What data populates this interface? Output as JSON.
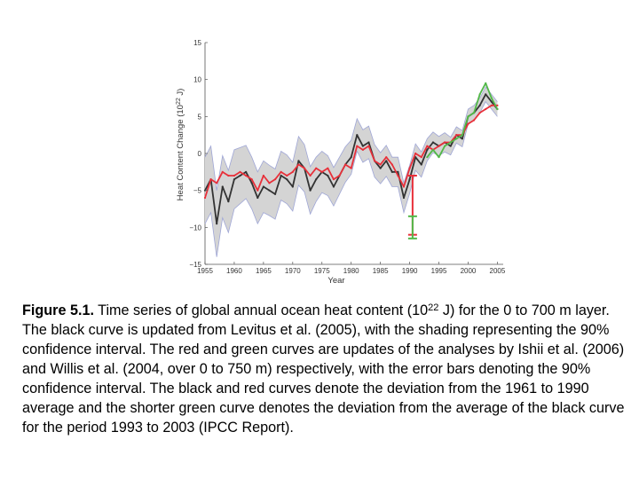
{
  "caption": {
    "figure_label": "Figure 5.1.",
    "text_before_exp": " Time series of global annual ocean heat content (10",
    "exponent": "22",
    "text_after_exp": " J) for the 0 to 700 m layer. The black curve is updated from Levitus et al. (2005), with the shading representing the 90% confidence interval. The red and green curves are updates of the analyses by Ishii et al. (2006) and Willis et al. (2004, over 0 to 750 m) respectively, with the error bars denoting the 90% confidence interval. The black and red curves denote the deviation from the 1961 to 1990 average and the shorter green curve denotes the deviation from the average of the black curve for the period 1993 to 2003 (IPCC Report)."
  },
  "chart_data": {
    "type": "line",
    "xlabel": "Year",
    "ylabel_prefix": "Heat Content Change (10",
    "ylabel_exp": "22",
    "ylabel_suffix": " J)",
    "xlim": [
      1955,
      2006
    ],
    "ylim": [
      -15,
      15
    ],
    "xticks": [
      1955,
      1960,
      1965,
      1970,
      1975,
      1980,
      1985,
      1990,
      1995,
      2000,
      2005
    ],
    "yticks": [
      -15,
      -10,
      -5,
      0,
      5,
      10,
      15
    ],
    "grid": false,
    "colors": {
      "black": "#333333",
      "red": "#e8303a",
      "green": "#52b848",
      "shade": "#d4d4d4",
      "shade_edge": "#9fa6d6"
    },
    "series": [
      {
        "color": "black",
        "x": [
          1955,
          1956,
          1957,
          1958,
          1959,
          1960,
          1961,
          1962,
          1963,
          1964,
          1965,
          1966,
          1967,
          1968,
          1969,
          1970,
          1971,
          1972,
          1973,
          1974,
          1975,
          1976,
          1977,
          1978,
          1979,
          1980,
          1981,
          1982,
          1983,
          1984,
          1985,
          1986,
          1987,
          1988,
          1989,
          1990,
          1991,
          1992,
          1993,
          1994,
          1995,
          1996,
          1997,
          1998,
          1999,
          2000,
          2001,
          2002,
          2003,
          2004,
          2005
        ],
        "y": [
          -5.0,
          -3.5,
          -9.5,
          -4.5,
          -6.5,
          -3.5,
          -3.0,
          -2.5,
          -4.0,
          -6.0,
          -4.5,
          -5.0,
          -5.5,
          -3.0,
          -3.5,
          -4.5,
          -1.0,
          -2.0,
          -5.0,
          -3.5,
          -2.5,
          -3.0,
          -4.5,
          -3.0,
          -1.5,
          -0.5,
          2.5,
          1.0,
          1.5,
          -1.0,
          -2.0,
          -1.0,
          -2.5,
          -2.5,
          -6.0,
          -3.5,
          -0.5,
          -1.5,
          0.5,
          1.5,
          1.0,
          1.5,
          1.0,
          2.5,
          2.0,
          5.0,
          5.5,
          6.5,
          8.0,
          7.0,
          6.0
        ],
        "ci": [
          4.5,
          4.5,
          4.5,
          4.2,
          4.2,
          4.0,
          3.8,
          3.6,
          3.5,
          3.5,
          3.5,
          3.4,
          3.4,
          3.3,
          3.3,
          3.3,
          3.3,
          3.2,
          3.2,
          3.0,
          2.8,
          2.7,
          2.6,
          2.5,
          2.4,
          2.3,
          2.2,
          2.2,
          2.2,
          2.2,
          2.1,
          2.1,
          2.0,
          2.0,
          2.0,
          1.9,
          1.8,
          1.7,
          1.5,
          1.4,
          1.3,
          1.3,
          1.2,
          1.1,
          1.1,
          1.0,
          1.0,
          1.0,
          1.0,
          1.0,
          1.0
        ]
      },
      {
        "color": "red",
        "x": [
          1955,
          1956,
          1957,
          1958,
          1959,
          1960,
          1961,
          1962,
          1963,
          1964,
          1965,
          1966,
          1967,
          1968,
          1969,
          1970,
          1971,
          1972,
          1973,
          1974,
          1975,
          1976,
          1977,
          1978,
          1979,
          1980,
          1981,
          1982,
          1983,
          1984,
          1985,
          1986,
          1987,
          1988,
          1989,
          1990,
          1991,
          1992,
          1993,
          1994,
          1995,
          1996,
          1997,
          1998,
          1999,
          2000,
          2001,
          2002,
          2003,
          2004,
          2005
        ],
        "y": [
          -6.0,
          -3.5,
          -4.0,
          -2.5,
          -3.0,
          -3.0,
          -2.5,
          -3.0,
          -3.5,
          -5.0,
          -3.0,
          -4.0,
          -3.5,
          -2.5,
          -3.0,
          -2.5,
          -1.5,
          -2.0,
          -3.0,
          -2.0,
          -2.5,
          -2.0,
          -3.5,
          -3.0,
          -1.5,
          -2.0,
          1.0,
          0.5,
          1.0,
          -1.0,
          -1.5,
          -0.5,
          -1.5,
          -3.0,
          -4.5,
          -2.0,
          0.0,
          -0.5,
          1.0,
          0.5,
          1.0,
          1.5,
          1.5,
          2.5,
          2.5,
          4.0,
          4.5,
          5.5,
          6.0,
          6.5,
          6.5
        ]
      },
      {
        "color": "green",
        "x": [
          1993,
          1994,
          1995,
          1996,
          1997,
          1998,
          1999,
          2000,
          2001,
          2002,
          2003,
          2004,
          2005
        ],
        "y": [
          -0.5,
          0.5,
          -0.5,
          1.0,
          1.5,
          2.0,
          2.5,
          5.0,
          5.5,
          8.0,
          9.5,
          7.5,
          6.0
        ]
      }
    ],
    "error_bars": [
      {
        "color": "red",
        "x": 1990.5,
        "ymin": -11.0,
        "ymax": -3.0
      },
      {
        "color": "green",
        "x": 1990.5,
        "ymin": -11.5,
        "ymax": -8.5
      }
    ]
  }
}
